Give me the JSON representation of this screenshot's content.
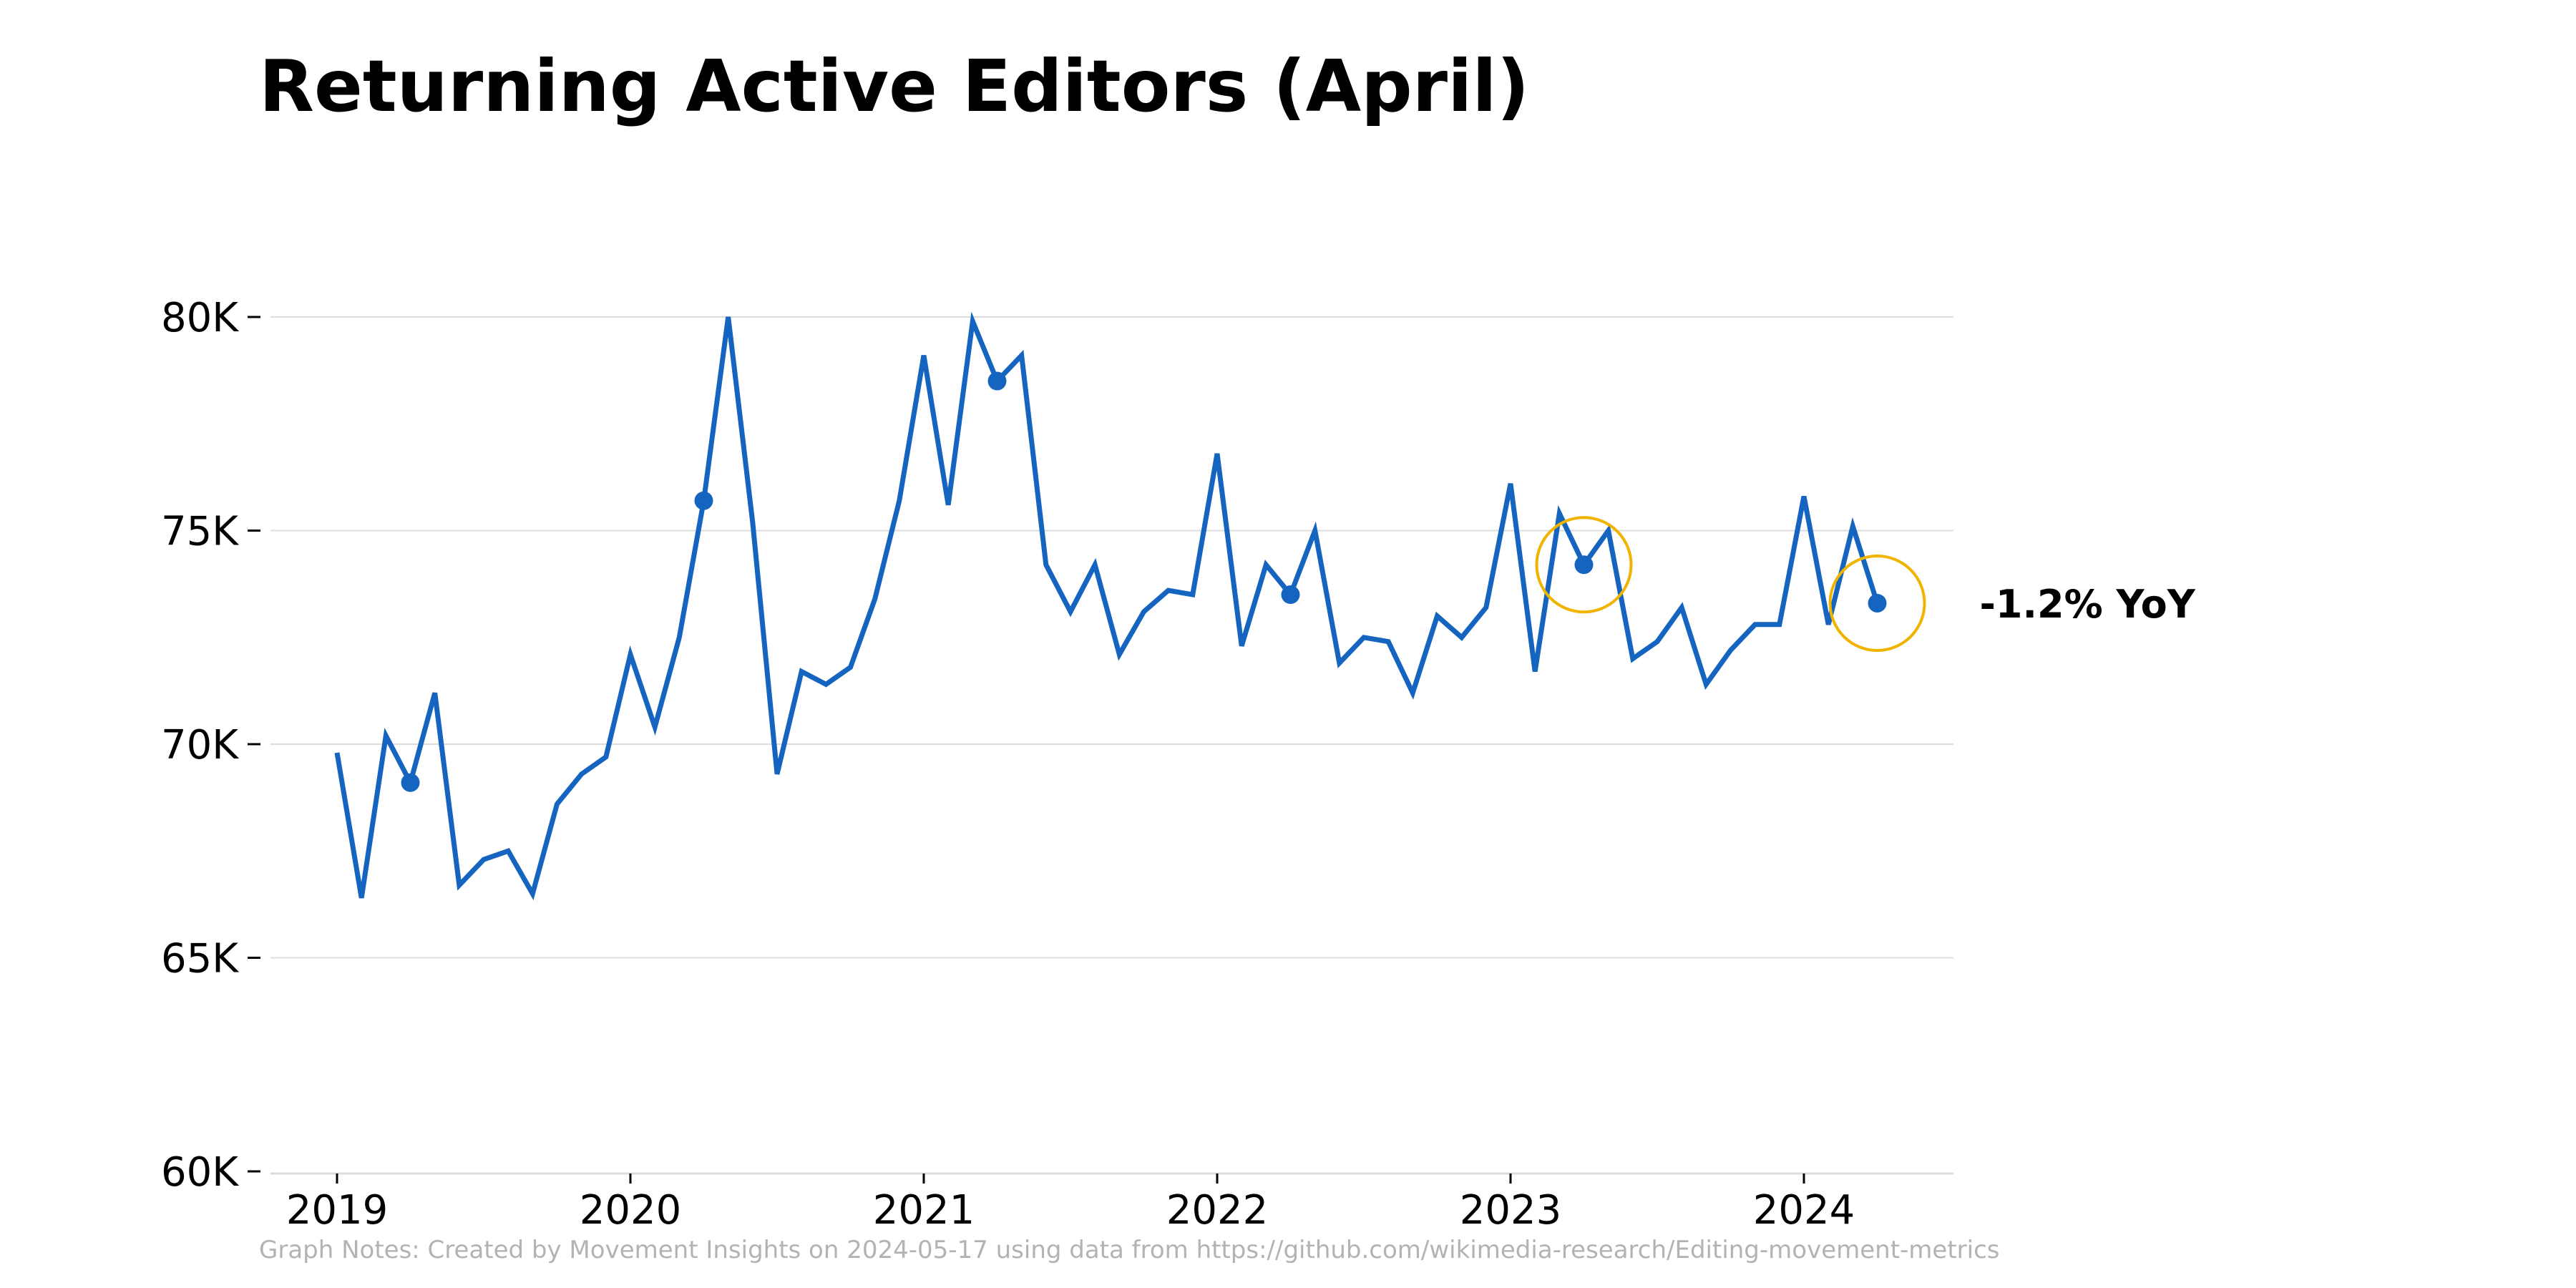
{
  "chart_data": {
    "type": "line",
    "title": "Returning Active Editors (April)",
    "xlabel": "",
    "ylabel": "",
    "ylim": [
      60000,
      80000
    ],
    "xlim": [
      "2019-01",
      "2024-05"
    ],
    "y_ticks": [
      {
        "value": 60000,
        "label": "60K"
      },
      {
        "value": 65000,
        "label": "65K"
      },
      {
        "value": 70000,
        "label": "70K"
      },
      {
        "value": 75000,
        "label": "75K"
      },
      {
        "value": 80000,
        "label": "80K"
      }
    ],
    "x_ticks": [
      {
        "value": "2019-01",
        "label": "2019"
      },
      {
        "value": "2020-01",
        "label": "2020"
      },
      {
        "value": "2021-01",
        "label": "2021"
      },
      {
        "value": "2022-01",
        "label": "2022"
      },
      {
        "value": "2023-01",
        "label": "2023"
      },
      {
        "value": "2024-01",
        "label": "2024"
      }
    ],
    "grid": "horizontal",
    "line_color": "#1565c0",
    "highlight_color": "#f0b400",
    "series": [
      {
        "x": [
          "2019-01",
          "2019-02",
          "2019-03",
          "2019-04",
          "2019-05",
          "2019-06",
          "2019-07",
          "2019-08",
          "2019-09",
          "2019-10",
          "2019-11",
          "2019-12",
          "2020-01",
          "2020-02",
          "2020-03",
          "2020-04",
          "2020-05",
          "2020-06",
          "2020-07",
          "2020-08",
          "2020-09",
          "2020-10",
          "2020-11",
          "2020-12",
          "2021-01",
          "2021-02",
          "2021-03",
          "2021-04",
          "2021-05",
          "2021-06",
          "2021-07",
          "2021-08",
          "2021-09",
          "2021-10",
          "2021-11",
          "2021-12",
          "2022-01",
          "2022-02",
          "2022-03",
          "2022-04",
          "2022-05",
          "2022-06",
          "2022-07",
          "2022-08",
          "2022-09",
          "2022-10",
          "2022-11",
          "2022-12",
          "2023-01",
          "2023-02",
          "2023-03",
          "2023-04",
          "2023-05",
          "2023-06",
          "2023-07",
          "2023-08",
          "2023-09",
          "2023-10",
          "2023-11",
          "2023-12",
          "2024-01",
          "2024-02",
          "2024-03",
          "2024-04"
        ],
        "values": [
          69800,
          66400,
          70200,
          69100,
          71200,
          66700,
          67300,
          67500,
          66500,
          68600,
          69300,
          69700,
          72100,
          70400,
          72500,
          75700,
          80000,
          75200,
          69300,
          71700,
          71400,
          71800,
          73400,
          75700,
          79100,
          75600,
          79900,
          78500,
          79100,
          74200,
          73100,
          74200,
          72100,
          73100,
          73600,
          73500,
          76800,
          72300,
          74200,
          73500,
          75000,
          71900,
          72500,
          72400,
          71200,
          73000,
          72500,
          73200,
          76100,
          71700,
          75400,
          74200,
          75000,
          72000,
          72400,
          73200,
          71400,
          72200,
          72800,
          72800,
          75800,
          72800,
          75100,
          73300
        ]
      }
    ],
    "highlight_points": [
      {
        "x": "2019-04",
        "y": 69100
      },
      {
        "x": "2020-04",
        "y": 75700
      },
      {
        "x": "2021-04",
        "y": 78500
      },
      {
        "x": "2022-04",
        "y": 73500
      },
      {
        "x": "2023-04",
        "y": 74200,
        "circled": true
      },
      {
        "x": "2024-04",
        "y": 73300,
        "circled": true
      }
    ],
    "annotations": [
      {
        "text": "-1.2% YoY",
        "x": "2024-04",
        "y": 73300
      }
    ],
    "notes": "Graph Notes: Created by Movement Insights  on 2024-05-17 using data from https://github.com/wikimedia-research/Editing-movement-metrics"
  }
}
